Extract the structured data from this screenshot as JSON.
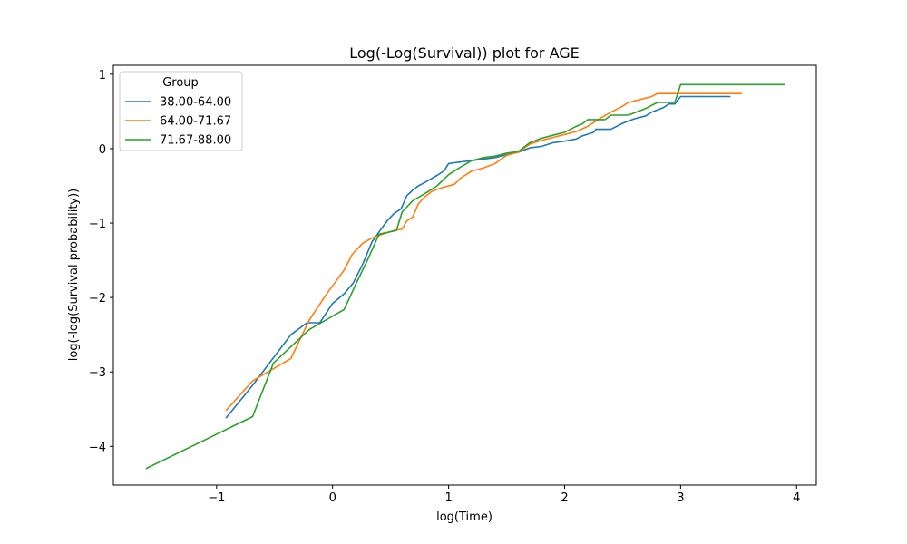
{
  "chart_data": {
    "type": "line",
    "title": "Log(-Log(Survival)) plot for AGE",
    "xlabel": "log(Time)",
    "ylabel": "log(-log(Survival probability))",
    "xlim": [
      -1.89,
      4.17
    ],
    "ylim": [
      -4.52,
      1.12
    ],
    "xticks": [
      -1,
      0,
      1,
      2,
      3,
      4
    ],
    "yticks": [
      -4,
      -3,
      -2,
      -1,
      0,
      1
    ],
    "xtick_labels": [
      "−1",
      "0",
      "1",
      "2",
      "3",
      "4"
    ],
    "ytick_labels": [
      "−4",
      "−3",
      "−2",
      "−1",
      "0",
      "1"
    ],
    "grid": false,
    "legend": {
      "title": "Group",
      "placement": "top-left"
    },
    "series": [
      {
        "name": "38.00-64.00",
        "color": "#1f77b4",
        "x": [
          -0.92,
          -0.69,
          -0.36,
          -0.22,
          -0.11,
          0.0,
          0.1,
          0.18,
          0.26,
          0.34,
          0.41,
          0.47,
          0.53,
          0.59,
          0.64,
          0.69,
          0.74,
          0.8,
          0.9,
          0.96,
          1.0,
          1.05,
          1.1,
          1.2,
          1.3,
          1.4,
          1.5,
          1.6,
          1.7,
          1.8,
          1.9,
          2.0,
          2.1,
          2.15,
          2.25,
          2.27,
          2.4,
          2.5,
          2.6,
          2.7,
          2.75,
          2.85,
          2.9,
          2.95,
          3.0,
          3.1,
          3.2,
          3.3,
          3.43
        ],
        "y": [
          -3.62,
          -3.18,
          -2.5,
          -2.34,
          -2.34,
          -2.08,
          -1.95,
          -1.8,
          -1.55,
          -1.25,
          -1.1,
          -0.97,
          -0.87,
          -0.81,
          -0.63,
          -0.56,
          -0.5,
          -0.45,
          -0.36,
          -0.3,
          -0.2,
          -0.19,
          -0.18,
          -0.16,
          -0.14,
          -0.12,
          -0.08,
          -0.05,
          0.01,
          0.03,
          0.08,
          0.1,
          0.13,
          0.17,
          0.22,
          0.26,
          0.26,
          0.34,
          0.4,
          0.44,
          0.49,
          0.55,
          0.6,
          0.6,
          0.7,
          0.7,
          0.7,
          0.7,
          0.7
        ]
      },
      {
        "name": "64.00-71.67",
        "color": "#ff7f0e",
        "x": [
          -0.92,
          -0.69,
          -0.36,
          -0.2,
          -0.05,
          0.1,
          0.17,
          0.26,
          0.34,
          0.45,
          0.53,
          0.6,
          0.64,
          0.69,
          0.74,
          0.8,
          0.86,
          0.95,
          1.05,
          1.1,
          1.2,
          1.3,
          1.4,
          1.5,
          1.6,
          1.7,
          1.8,
          1.9,
          2.0,
          2.1,
          2.2,
          2.3,
          2.4,
          2.5,
          2.55,
          2.65,
          2.75,
          2.8,
          2.9,
          3.0,
          3.2,
          3.4,
          3.53
        ],
        "y": [
          -3.52,
          -3.12,
          -2.82,
          -2.3,
          -1.95,
          -1.63,
          -1.42,
          -1.27,
          -1.2,
          -1.14,
          -1.1,
          -1.08,
          -0.97,
          -0.92,
          -0.74,
          -0.64,
          -0.57,
          -0.52,
          -0.48,
          -0.4,
          -0.3,
          -0.26,
          -0.2,
          -0.09,
          -0.05,
          0.06,
          0.11,
          0.15,
          0.19,
          0.23,
          0.3,
          0.4,
          0.49,
          0.57,
          0.62,
          0.66,
          0.7,
          0.74,
          0.74,
          0.74,
          0.74,
          0.74,
          0.74
        ]
      },
      {
        "name": "71.67-88.00",
        "color": "#2ca02c",
        "x": [
          -1.61,
          -0.69,
          -0.51,
          -0.2,
          0.1,
          0.2,
          0.3,
          0.4,
          0.55,
          0.6,
          0.69,
          0.8,
          0.9,
          1.0,
          1.1,
          1.2,
          1.3,
          1.4,
          1.5,
          1.6,
          1.7,
          1.8,
          1.9,
          2.0,
          2.1,
          2.15,
          2.2,
          2.35,
          2.4,
          2.55,
          2.7,
          2.8,
          2.95,
          3.0,
          3.2,
          3.4,
          3.6,
          3.8,
          3.9
        ],
        "y": [
          -4.3,
          -3.6,
          -2.88,
          -2.43,
          -2.16,
          -1.82,
          -1.5,
          -1.15,
          -1.1,
          -0.85,
          -0.7,
          -0.6,
          -0.5,
          -0.35,
          -0.25,
          -0.16,
          -0.12,
          -0.1,
          -0.06,
          -0.04,
          0.08,
          0.14,
          0.18,
          0.22,
          0.3,
          0.33,
          0.39,
          0.39,
          0.45,
          0.45,
          0.54,
          0.62,
          0.62,
          0.86,
          0.86,
          0.86,
          0.86,
          0.86,
          0.86
        ]
      }
    ]
  }
}
